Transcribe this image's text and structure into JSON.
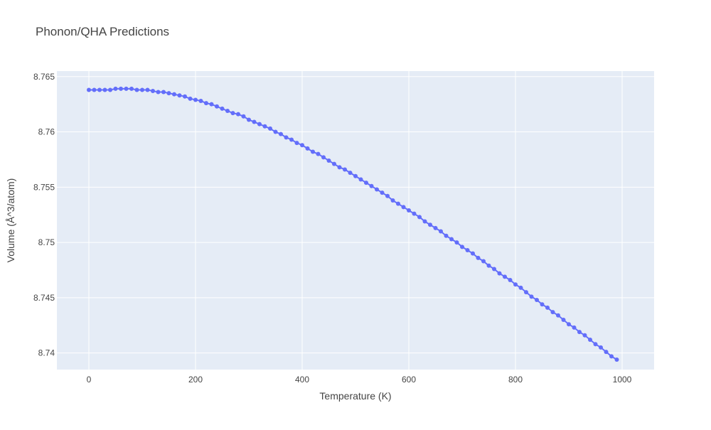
{
  "chart_data": {
    "type": "line",
    "title": "Phonon/QHA Predictions",
    "xlabel": "Temperature (K)",
    "ylabel": "Volume (Å^3/atom)",
    "xlim": [
      -60,
      1060
    ],
    "ylim": [
      8.7385,
      8.7655
    ],
    "xticks": [
      0,
      200,
      400,
      600,
      800,
      1000
    ],
    "xtick_labels": [
      "0",
      "200",
      "400",
      "600",
      "800",
      "1000"
    ],
    "yticks": [
      8.74,
      8.745,
      8.75,
      8.755,
      8.76,
      8.765
    ],
    "ytick_labels": [
      "8.74",
      "8.745",
      "8.75",
      "8.755",
      "8.76",
      "8.765"
    ],
    "grid": true,
    "colors": {
      "plot_bg": "#e5ecf6",
      "grid": "#ffffff",
      "series": "#636efa",
      "text": "#444444",
      "title": "#444444"
    },
    "series": [
      {
        "x": [
          0,
          10,
          20,
          30,
          40,
          50,
          60,
          70,
          80,
          90,
          100,
          110,
          120,
          130,
          140,
          150,
          160,
          170,
          180,
          190,
          200,
          210,
          220,
          230,
          240,
          250,
          260,
          270,
          280,
          290,
          300,
          310,
          320,
          330,
          340,
          350,
          360,
          370,
          380,
          390,
          400,
          410,
          420,
          430,
          440,
          450,
          460,
          470,
          480,
          490,
          500,
          510,
          520,
          530,
          540,
          550,
          560,
          570,
          580,
          590,
          600,
          610,
          620,
          630,
          640,
          650,
          660,
          670,
          680,
          690,
          700,
          710,
          720,
          730,
          740,
          750,
          760,
          770,
          780,
          790,
          800,
          810,
          820,
          830,
          840,
          850,
          860,
          870,
          880,
          890,
          900,
          910,
          920,
          930,
          940,
          950,
          960,
          970,
          980,
          990
        ],
        "y": [
          8.7638,
          8.7638,
          8.7638,
          8.7638,
          8.7638,
          8.7639,
          8.7639,
          8.7639,
          8.7639,
          8.7638,
          8.7638,
          8.7638,
          8.7637,
          8.7636,
          8.7636,
          8.7635,
          8.7634,
          8.7633,
          8.7632,
          8.763,
          8.7629,
          8.7628,
          8.7626,
          8.7625,
          8.7623,
          8.7621,
          8.7619,
          8.7617,
          8.7616,
          8.7614,
          8.7611,
          8.7609,
          8.7607,
          8.7605,
          8.7603,
          8.76,
          8.7598,
          8.7595,
          8.7593,
          8.759,
          8.7588,
          8.7585,
          8.7582,
          8.758,
          8.7577,
          8.7574,
          8.7571,
          8.7568,
          8.7566,
          8.7563,
          8.756,
          8.7557,
          8.7554,
          8.7551,
          8.7548,
          8.7545,
          8.7542,
          8.7538,
          8.7535,
          8.7532,
          8.7529,
          8.7526,
          8.7523,
          8.7519,
          8.7516,
          8.7513,
          8.751,
          8.7506,
          8.7503,
          8.75,
          8.7496,
          8.7493,
          8.749,
          8.7486,
          8.7483,
          8.7479,
          8.7476,
          8.7472,
          8.7469,
          8.7466,
          8.7462,
          8.7459,
          8.7455,
          8.7451,
          8.7448,
          8.7444,
          8.7441,
          8.7437,
          8.7434,
          8.743,
          8.7426,
          8.7423,
          8.7419,
          8.7416,
          8.7412,
          8.7408,
          8.7405,
          8.7401,
          8.7397,
          8.7394
        ]
      }
    ]
  }
}
